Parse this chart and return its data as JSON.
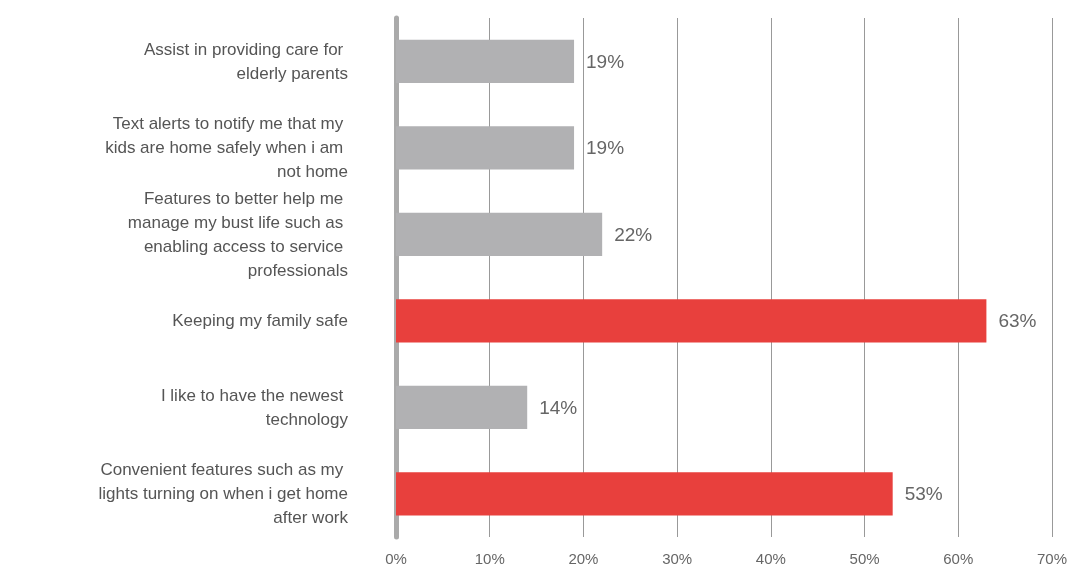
{
  "chart_data": {
    "type": "bar",
    "orientation": "horizontal",
    "categories": [
      "Assist in providing care for elderly parents",
      "Text alerts to notify me that my kids are home safely when i am not home",
      "Features to better help me manage my bust life such as enabling access to service professionals",
      "Keeping my family safe",
      "I like to have the newest technology",
      "Convenient features such as my lights turning on when i get home after work"
    ],
    "values": [
      19,
      19,
      22,
      63,
      14,
      53
    ],
    "colors": [
      "#b1b1b3",
      "#b1b1b3",
      "#b1b1b3",
      "#e8403d",
      "#b1b1b3",
      "#e8403d"
    ],
    "value_labels": [
      "19%",
      "19%",
      "22%",
      "63%",
      "14%",
      "53%"
    ],
    "xlim": [
      0,
      70
    ],
    "xticks": [
      {
        "value": 0,
        "label": "0%"
      },
      {
        "value": 10,
        "label": "10%"
      },
      {
        "value": 20,
        "label": "20%"
      },
      {
        "value": 30,
        "label": "30%"
      },
      {
        "value": 40,
        "label": "40%"
      },
      {
        "value": 50,
        "label": "50%"
      },
      {
        "value": 60,
        "label": "60%"
      },
      {
        "value": 70,
        "label": "70%"
      }
    ],
    "grid": "x"
  }
}
